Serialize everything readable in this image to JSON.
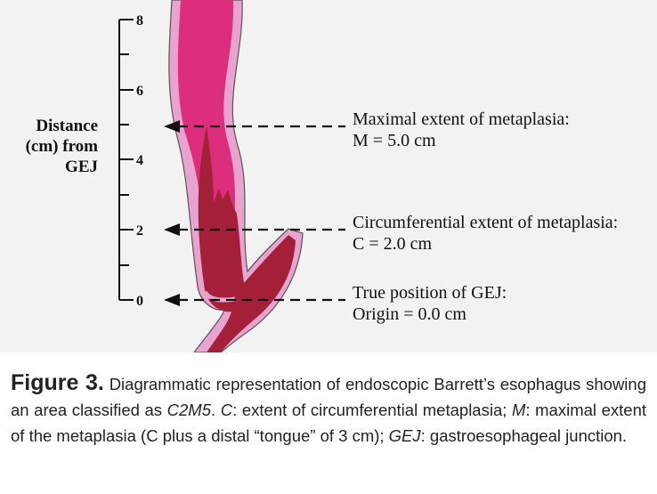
{
  "diagram": {
    "axis": {
      "title_lines": [
        "Distance",
        "(cm) from",
        "GEJ"
      ],
      "ticks": [
        "0",
        "2",
        "4",
        "6",
        "8"
      ]
    },
    "annotations": [
      {
        "line1": "Maximal extent of metaplasia:",
        "line2": "M = 5.0 cm"
      },
      {
        "line1": "Circumferential extent of metaplasia:",
        "line2": "C = 2.0 cm"
      },
      {
        "line1": "True position of GEJ:",
        "line2": "Origin = 0.0 cm"
      }
    ],
    "colors": {
      "background": "#f2f2f2",
      "esophagus_lining": "#e8a4cf",
      "esophageal_mucosa": "#dd2e7e",
      "metaplasia": "#a41f38",
      "outline": "#555555"
    }
  },
  "caption": {
    "label": "Figure 3.",
    "t1": " Diagrammatic representation of endoscopic Barrett’s esophagus showing an area classified as ",
    "i1": "C2M5",
    "t2": ". ",
    "i2": "C",
    "t3": ": extent of circumferential metaplasia; ",
    "i3": "M",
    "t4": ": maximal extent of the metaplasia (C plus a distal “tongue” of 3 cm); ",
    "i4": "GEJ",
    "t5": ": gastroesophageal junction."
  }
}
